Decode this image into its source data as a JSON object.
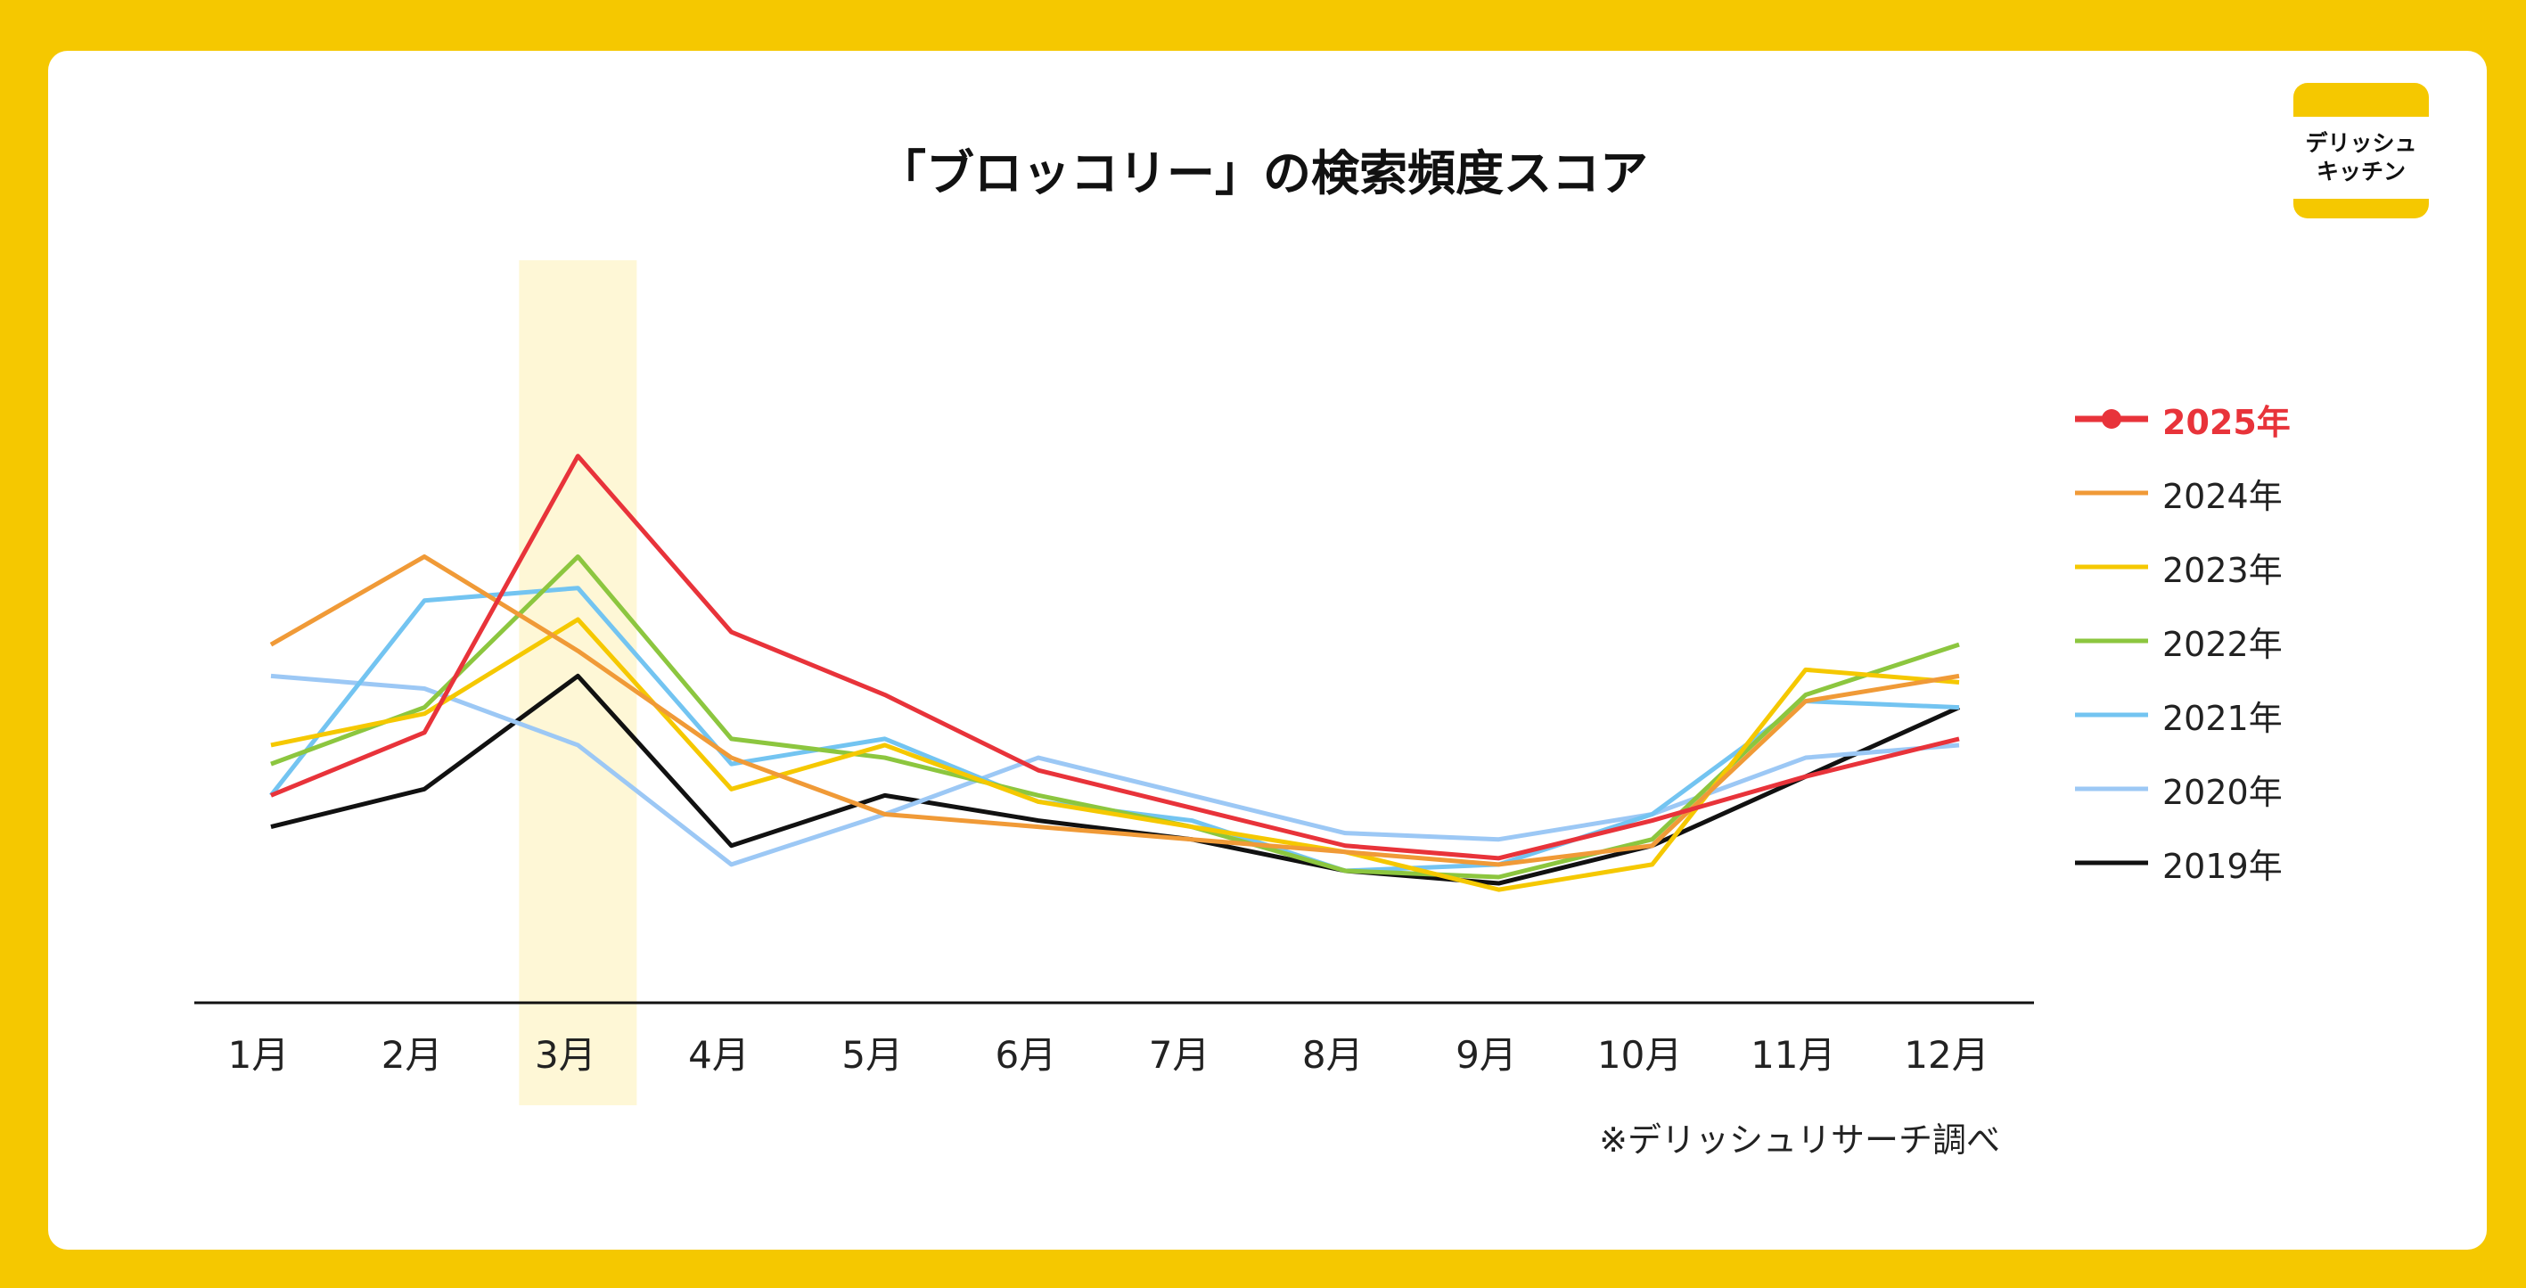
{
  "page": {
    "background": "#F5C800",
    "card_background": "#FFFFFF"
  },
  "logo": {
    "line1": "デリッシュ",
    "line2": "キッチン"
  },
  "source_note": "※デリッシュリサーチ調べ",
  "chart_data": {
    "type": "line",
    "title": "「ブロッコリー」の検索頻度スコア",
    "xlabel": "",
    "ylabel": "",
    "ylim": [
      0,
      100
    ],
    "grid": false,
    "legend_position": "right",
    "highlight": {
      "category": "3月",
      "color": "#FEF7D6"
    },
    "categories": [
      "1月",
      "2月",
      "3月",
      "4月",
      "5月",
      "6月",
      "7月",
      "8月",
      "9月",
      "10月",
      "11月",
      "12月"
    ],
    "series": [
      {
        "name": "2025年",
        "color": "#E8333A",
        "highlight": true,
        "values": [
          33,
          43,
          87,
          59,
          49,
          37,
          31,
          25,
          23,
          29,
          36,
          42
        ]
      },
      {
        "name": "2024年",
        "color": "#F09A37",
        "values": [
          57,
          71,
          56,
          39,
          30,
          28,
          26,
          24,
          22,
          25,
          48,
          52
        ]
      },
      {
        "name": "2023年",
        "color": "#F5C800",
        "values": [
          41,
          46,
          61,
          34,
          41,
          32,
          28,
          24,
          18,
          22,
          53,
          51
        ]
      },
      {
        "name": "2022年",
        "color": "#8CC63F",
        "values": [
          38,
          47,
          71,
          42,
          39,
          33,
          28,
          21,
          20,
          26,
          49,
          57
        ]
      },
      {
        "name": "2021年",
        "color": "#73C4F1",
        "values": [
          33,
          64,
          66,
          38,
          42,
          32,
          29,
          21,
          22,
          30,
          48,
          47
        ]
      },
      {
        "name": "2020年",
        "color": "#9CC8F5",
        "values": [
          52,
          50,
          41,
          22,
          30,
          39,
          33,
          27,
          26,
          30,
          39,
          41
        ]
      },
      {
        "name": "2019年",
        "color": "#111111",
        "values": [
          28,
          34,
          52,
          25,
          33,
          29,
          26,
          21,
          19,
          25,
          36,
          47
        ]
      }
    ]
  }
}
